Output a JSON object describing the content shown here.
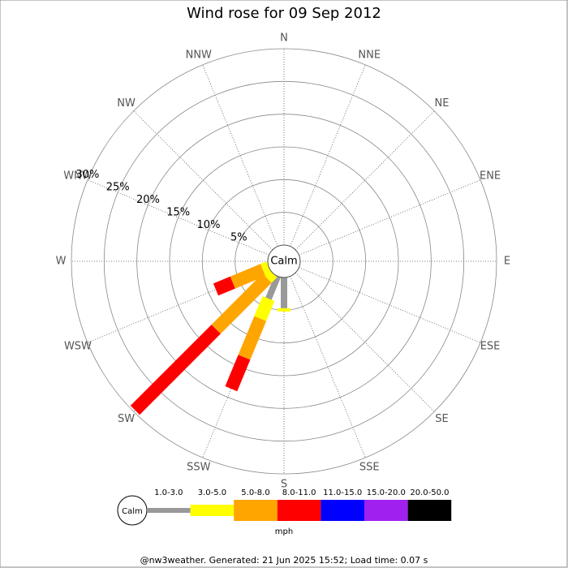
{
  "chart_data": {
    "type": "windrose",
    "title": "Wind rose for 09 Sep 2012",
    "directions": [
      "N",
      "NNE",
      "NE",
      "ENE",
      "E",
      "ESE",
      "SE",
      "SSE",
      "S",
      "SSW",
      "SW",
      "WSW",
      "W",
      "WNW",
      "NW",
      "NNW"
    ],
    "calm_label": "Calm",
    "unit": "mph",
    "rlim": [
      0,
      30
    ],
    "rticks": [
      {
        "value": 5,
        "label": "5%"
      },
      {
        "value": 10,
        "label": "10%"
      },
      {
        "value": 15,
        "label": "15%"
      },
      {
        "value": 20,
        "label": "20%"
      },
      {
        "value": 25,
        "label": "25%"
      },
      {
        "value": 30,
        "label": "30%"
      }
    ],
    "series": [
      {
        "name": "1.0-3.0",
        "color": "#999999",
        "values": [
          0,
          0,
          0,
          0,
          0,
          0,
          0,
          0,
          4.7,
          3.7,
          0,
          0,
          0,
          0,
          0,
          0
        ]
      },
      {
        "name": "3.0-5.0",
        "color": "#ffff00",
        "values": [
          0,
          0,
          0,
          0,
          0,
          0,
          0,
          0,
          0.5,
          3.3,
          1.2,
          1,
          0,
          0,
          0,
          0
        ]
      },
      {
        "name": "5.0-8.0",
        "color": "#ffa500",
        "values": [
          0,
          0,
          0,
          0,
          0,
          0,
          0,
          0,
          0,
          6.4,
          11,
          5,
          0,
          0,
          0,
          0
        ]
      },
      {
        "name": "8.0-11.0",
        "color": "#ff0000",
        "values": [
          0,
          0,
          0,
          0,
          0,
          0,
          0,
          0,
          0,
          5.2,
          17.5,
          2.8,
          0,
          0,
          0,
          0
        ]
      },
      {
        "name": "11.0-15.0",
        "color": "#0000ff",
        "values": [
          0,
          0,
          0,
          0,
          0,
          0,
          0,
          0,
          0,
          0,
          0,
          0,
          0,
          0,
          0,
          0
        ]
      },
      {
        "name": "15.0-20.0",
        "color": "#a020f0",
        "values": [
          0,
          0,
          0,
          0,
          0,
          0,
          0,
          0,
          0,
          0,
          0,
          0,
          0,
          0,
          0,
          0
        ]
      },
      {
        "name": "20.0-50.0",
        "color": "#000000",
        "values": [
          0,
          0,
          0,
          0,
          0,
          0,
          0,
          0,
          0,
          0,
          0,
          0,
          0,
          0,
          0,
          0
        ]
      }
    ],
    "footer": "@nw3weather. Generated: 21 Jun 2025 15:52; Load time: 0.07 s"
  }
}
